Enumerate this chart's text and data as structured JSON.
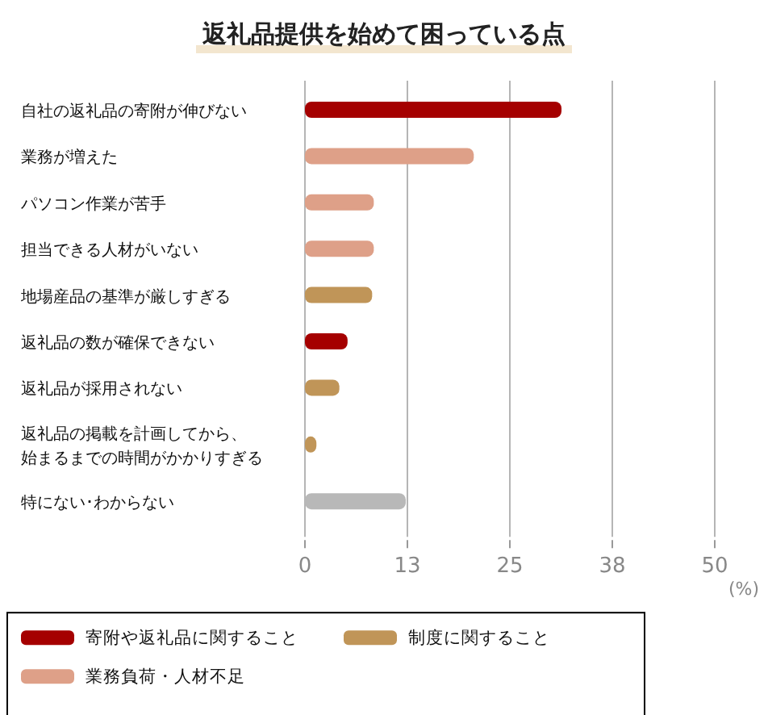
{
  "chart_data": {
    "type": "bar",
    "orientation": "horizontal",
    "title": "返礼品提供を始めて困っている点",
    "xlabel": "(%)",
    "categories": [
      "自社の返礼品の寄附が伸びない",
      "業務が増えた",
      "パソコン作業が苦手",
      "担当できる人材がいない",
      "地場産品の基準が厳しすぎる",
      "返礼品の数が確保できない",
      "返礼品が採用されない",
      "返礼品の掲載を計画してから、始まるまでの時間がかかりすぎる",
      "特にない･わからない"
    ],
    "series": [
      {
        "name": "寄附や返礼品に関すること",
        "color": "#a50000",
        "values": [
          31.3,
          null,
          null,
          null,
          null,
          5.2,
          null,
          null,
          null
        ]
      },
      {
        "name": "制度に関すること",
        "color": "#c09558",
        "values": [
          null,
          null,
          null,
          null,
          8.2,
          null,
          4.2,
          1.4,
          null
        ]
      },
      {
        "name": "業務負荷・人材不足",
        "color": "#dea088",
        "values": [
          null,
          20.6,
          8.4,
          8.4,
          null,
          null,
          null,
          null,
          null
        ]
      },
      {
        "color": "#b8b8b8",
        "values": [
          null,
          null,
          null,
          null,
          null,
          null,
          null,
          null,
          12.3
        ]
      }
    ],
    "xlim": [
      0,
      50
    ],
    "xticks": [
      0,
      {
        "value": 12.5,
        "label": "13"
      },
      25,
      {
        "value": 37.5,
        "label": "38"
      },
      50
    ],
    "grid": "x",
    "legend": "bottom"
  }
}
